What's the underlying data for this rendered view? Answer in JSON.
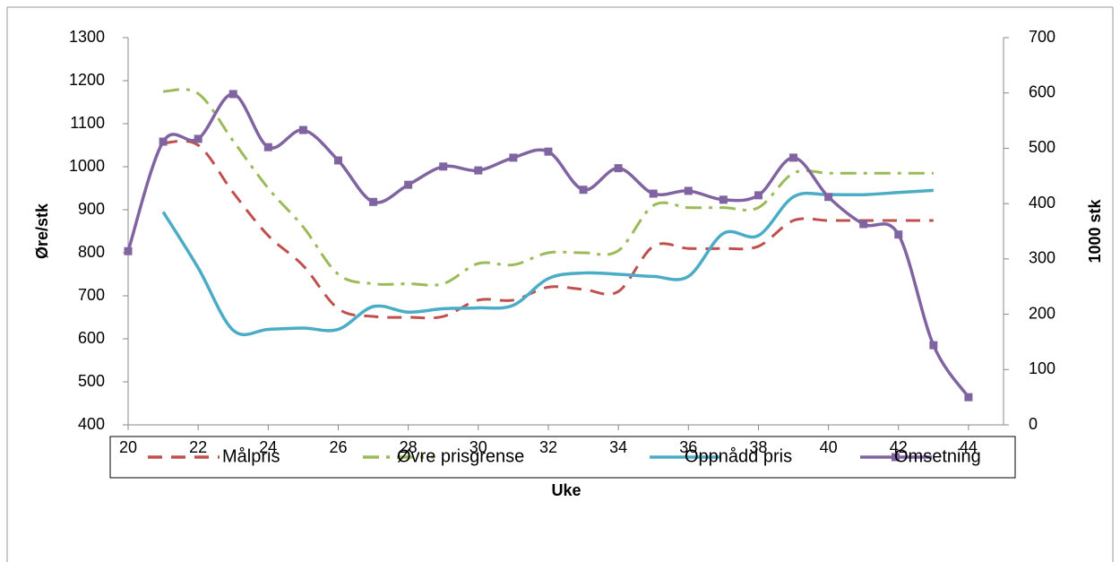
{
  "chart_data": {
    "type": "line",
    "x_label": "Uke",
    "y_label": "Øre/stk",
    "y2_label": "1000 stk",
    "x": [
      20,
      21,
      22,
      23,
      24,
      25,
      26,
      27,
      28,
      29,
      30,
      31,
      32,
      33,
      34,
      35,
      36,
      37,
      38,
      39,
      40,
      41,
      42,
      43,
      44
    ],
    "xlim": [
      20,
      45
    ],
    "xticks": [
      20,
      22,
      24,
      26,
      28,
      30,
      32,
      34,
      36,
      38,
      40,
      42,
      44
    ],
    "ylim": [
      400,
      1300
    ],
    "yticks": [
      400,
      500,
      600,
      700,
      800,
      900,
      1000,
      1100,
      1200,
      1300
    ],
    "y2lim": [
      0,
      700
    ],
    "y2ticks": [
      0,
      100,
      200,
      300,
      400,
      500,
      600,
      700
    ],
    "smooth": true,
    "legend": "bottom",
    "series": [
      {
        "name": "Målpris",
        "color": "#c0504d",
        "style": "dashed",
        "values": [
          null,
          1055,
          1050,
          940,
          840,
          770,
          670,
          652,
          650,
          652,
          690,
          690,
          720,
          715,
          710,
          815,
          810,
          810,
          815,
          875,
          875,
          875,
          875,
          875,
          null
        ]
      },
      {
        "name": "Øvre prisgrense",
        "color": "#9bbb59",
        "style": "dashdot",
        "values": [
          null,
          1175,
          1170,
          1060,
          950,
          860,
          750,
          728,
          728,
          728,
          775,
          772,
          800,
          800,
          805,
          910,
          905,
          905,
          905,
          985,
          985,
          985,
          985,
          985,
          null
        ]
      },
      {
        "name": "Oppnådd pris",
        "color": "#4bacc6",
        "style": "solid",
        "values": [
          null,
          895,
          765,
          620,
          622,
          625,
          622,
          675,
          662,
          670,
          672,
          678,
          740,
          753,
          750,
          745,
          745,
          845,
          840,
          930,
          935,
          935,
          940,
          945,
          null
        ]
      },
      {
        "name": "Omsetning",
        "color": "#8064a2",
        "style": "solid",
        "marker": "square",
        "axis": "y2",
        "values": [
          314,
          512,
          517,
          598,
          502,
          533,
          478,
          403,
          434,
          467,
          460,
          483,
          494,
          425,
          464,
          418,
          423,
          407,
          415,
          483,
          412,
          363,
          344,
          144,
          50
        ]
      }
    ]
  }
}
